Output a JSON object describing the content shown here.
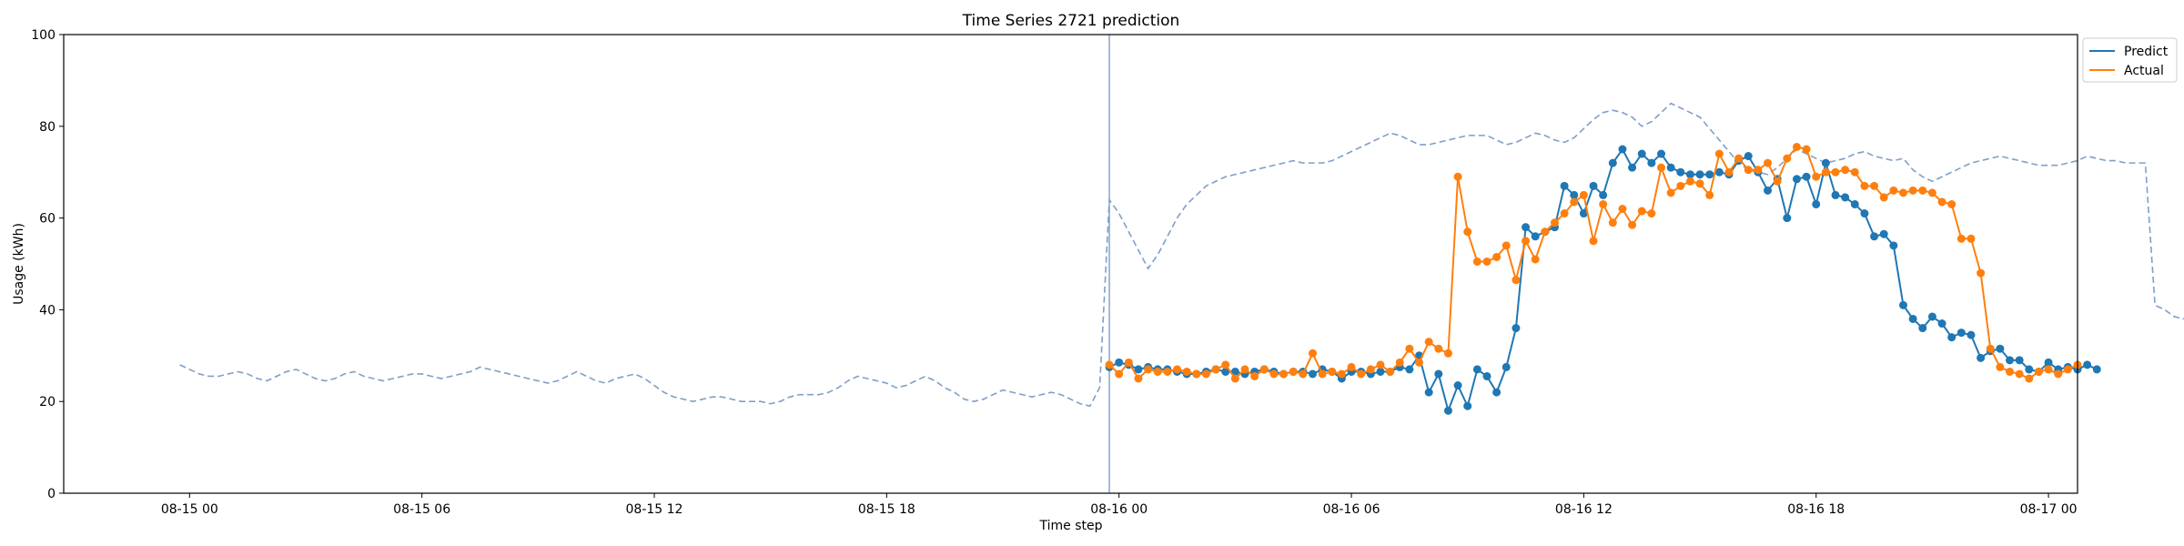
{
  "chart_data": {
    "type": "line",
    "title": "Time Series 2721 prediction",
    "xlabel": "Time step",
    "ylabel": "Usage (kWh)",
    "ylim": [
      0,
      100
    ],
    "yticks": [
      0,
      20,
      40,
      60,
      80,
      100
    ],
    "xlim": [
      "2024-08-14 20:45",
      "2024-08-17 00:45"
    ],
    "xticks": [
      {
        "x": "2024-08-15 00:00",
        "label": "08-15 00"
      },
      {
        "x": "2024-08-15 06:00",
        "label": "08-15 06"
      },
      {
        "x": "2024-08-15 12:00",
        "label": "08-15 12"
      },
      {
        "x": "2024-08-15 18:00",
        "label": "08-15 18"
      },
      {
        "x": "2024-08-16 00:00",
        "label": "08-16 00"
      },
      {
        "x": "2024-08-16 06:00",
        "label": "08-16 06"
      },
      {
        "x": "2024-08-16 12:00",
        "label": "08-16 12"
      },
      {
        "x": "2024-08-16 18:00",
        "label": "08-16 18"
      },
      {
        "x": "2024-08-17 00:00",
        "label": "08-17 00"
      }
    ],
    "forecast_start": "2024-08-15 23:45",
    "interval_minutes": 15,
    "grid": false,
    "legend_position": "upper right outside",
    "history": {
      "color": "#7f9fc9",
      "start": "2024-08-14 23:45",
      "values": [
        28,
        27,
        26,
        25.5,
        25.5,
        26,
        26.5,
        26,
        25,
        24.5,
        25.5,
        26.5,
        27,
        26,
        25,
        24.5,
        25,
        26,
        26.5,
        25.5,
        25,
        24.5,
        25,
        25.5,
        26,
        26,
        25.5,
        25,
        25.5,
        26,
        26.5,
        27.5,
        27,
        26.5,
        26,
        25.5,
        25,
        24.5,
        24,
        24.5,
        25.5,
        26.5,
        25.5,
        24.5,
        24,
        25,
        25.5,
        26,
        25,
        23.5,
        22,
        21,
        20.5,
        20,
        20.5,
        21,
        21,
        20.5,
        20,
        20,
        20,
        19.5,
        20,
        21,
        21.5,
        21.5,
        21.5,
        22,
        23,
        24.5,
        25.5,
        25,
        24.5,
        24,
        23,
        23.5,
        24.5,
        25.5,
        24.5,
        23,
        22,
        20.5,
        20,
        20.5,
        21.5,
        22.5,
        22,
        21.5,
        21,
        21.5,
        22,
        21.5,
        20.5,
        19.5,
        19,
        23,
        64,
        61,
        57,
        53,
        49,
        52,
        56,
        60,
        63,
        65,
        67,
        68,
        69,
        69.5,
        70,
        70.5,
        71,
        71.5,
        72,
        72.5,
        72,
        72,
        72,
        72.5,
        73.5,
        74.5,
        75.5,
        76.5,
        77.5,
        78.5,
        78,
        77,
        76,
        76,
        76.5,
        77,
        77.5,
        78,
        78,
        78,
        77,
        76,
        76.5,
        77.5,
        78.5,
        78,
        77,
        76.5,
        77.5,
        79.5,
        81.5,
        83,
        83.5,
        83,
        82,
        80,
        81,
        83,
        85,
        84,
        83,
        82,
        79.5,
        77,
        74.5,
        72,
        70.5,
        70,
        69.5,
        71,
        73,
        75,
        74,
        73,
        72,
        72.5,
        73,
        74,
        74.5,
        73.5,
        73,
        72.5,
        73,
        70.5,
        69,
        68,
        69,
        70,
        71,
        72,
        72.5,
        73,
        73.5,
        73,
        72.5,
        72,
        71.5,
        71.5,
        71.5,
        72,
        72.5,
        73.5,
        73,
        72.5,
        72.5,
        72,
        72,
        72,
        41,
        40,
        38.5,
        38,
        37,
        36,
        35,
        34.5,
        34,
        34.5,
        33.5,
        33,
        33,
        34,
        35,
        34,
        33,
        32,
        32.5,
        33,
        32,
        31.5,
        31,
        31.5,
        30.5,
        28,
        24.5,
        24.5,
        25,
        26.5,
        28.5,
        28,
        27.5,
        27.5,
        28,
        28.5,
        28,
        27.5,
        27,
        27,
        27.5,
        28,
        28,
        27.5,
        28,
        28.5,
        29,
        29.5,
        29,
        28,
        27
      ]
    },
    "series": [
      {
        "name": "Predict",
        "color": "#1f77b4",
        "start": "2024-08-15 23:45",
        "values": [
          27.5,
          28.5,
          28,
          27,
          27.5,
          27,
          27,
          26.5,
          26,
          26,
          26.5,
          27,
          26.5,
          26.5,
          26,
          26.5,
          27,
          26.5,
          26,
          26.5,
          26.5,
          26,
          27,
          26.5,
          25,
          26.5,
          26.5,
          26,
          26.5,
          26.5,
          27.5,
          27,
          30,
          22,
          26,
          18,
          23.5,
          19,
          27,
          25.5,
          22,
          27.5,
          36,
          58,
          56,
          57,
          58,
          67,
          65,
          61,
          67,
          65,
          72,
          75,
          71,
          74,
          72,
          74,
          71,
          70,
          69.5,
          69.5,
          69.5,
          70,
          69.5,
          72.5,
          73.5,
          70,
          66,
          68.5,
          60,
          68.5,
          69,
          63,
          72,
          65,
          64.5,
          63,
          61,
          56,
          56.5,
          54,
          41,
          38,
          36,
          38.5,
          37,
          34,
          35,
          34.5,
          29.5,
          31,
          31.5,
          29,
          29,
          27,
          26.5,
          28.5,
          27,
          27.5,
          27,
          28,
          27
        ]
      },
      {
        "name": "Actual",
        "color": "#ff7f0e",
        "start": "2024-08-15 23:45",
        "values": [
          28,
          26,
          28.5,
          25,
          27,
          26.5,
          26.5,
          27,
          26.5,
          26,
          26,
          27,
          28,
          25,
          27,
          25.5,
          27,
          26,
          26,
          26.5,
          26,
          30.5,
          26,
          26.5,
          26,
          27.5,
          26,
          27,
          28,
          26.5,
          28.5,
          31.5,
          28.5,
          33,
          31.5,
          30.5,
          69,
          57,
          50.5,
          50.5,
          51.5,
          54,
          46.5,
          55,
          51,
          57,
          59,
          61,
          63.5,
          65,
          55,
          63,
          59,
          62,
          58.5,
          61.5,
          61,
          71,
          65.5,
          67,
          68,
          67.5,
          65,
          74,
          70,
          73,
          70.5,
          70.5,
          72,
          68,
          73,
          75.5,
          75,
          69,
          70,
          70,
          70.5,
          70,
          67,
          67,
          64.5,
          66,
          65.5,
          66,
          66,
          65.5,
          63.5,
          63,
          55.5,
          55.5,
          48,
          31.5,
          27.5,
          26.5,
          26,
          25,
          26.5,
          27,
          26,
          27,
          28
        ]
      }
    ]
  }
}
